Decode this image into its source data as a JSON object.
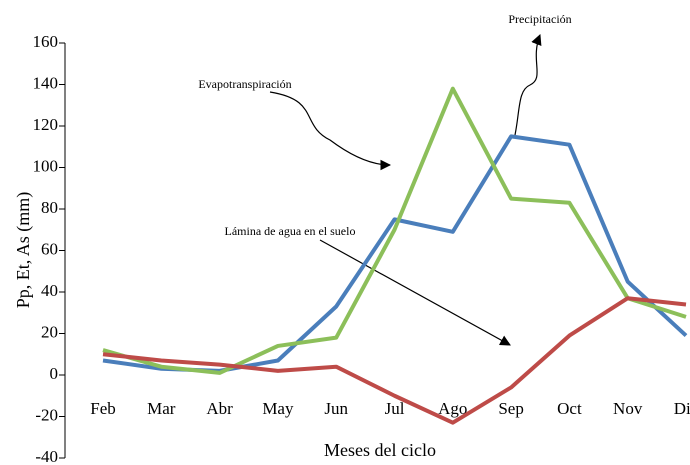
{
  "chart_data": {
    "type": "line",
    "y_label": "Pp, Et, As (mm)",
    "x_label": "Meses del ciclo",
    "categories": [
      "Feb",
      "Mar",
      "Abr",
      "May",
      "Jun",
      "Jul",
      "Ago",
      "Sep",
      "Oct",
      "Nov",
      "Dic"
    ],
    "series": [
      {
        "name": "Precipitación",
        "color": "#4a7ebb",
        "values": [
          7,
          3,
          2,
          7,
          33,
          75,
          69,
          115,
          111,
          45,
          19
        ]
      },
      {
        "name": "Evapotranspiración",
        "color": "#8cbf5a",
        "values": [
          12,
          4,
          1,
          14,
          18,
          70,
          138,
          85,
          83,
          37,
          28
        ]
      },
      {
        "name": "Lámina de agua en el suelo",
        "color": "#be4b48",
        "values": [
          10,
          7,
          5,
          2,
          4,
          -10,
          -23,
          -6,
          19,
          37,
          34
        ]
      }
    ],
    "ylim": [
      -40,
      160
    ],
    "yticks": [
      -40,
      -20,
      0,
      20,
      40,
      60,
      80,
      100,
      120,
      140,
      160
    ],
    "grid": false
  }
}
